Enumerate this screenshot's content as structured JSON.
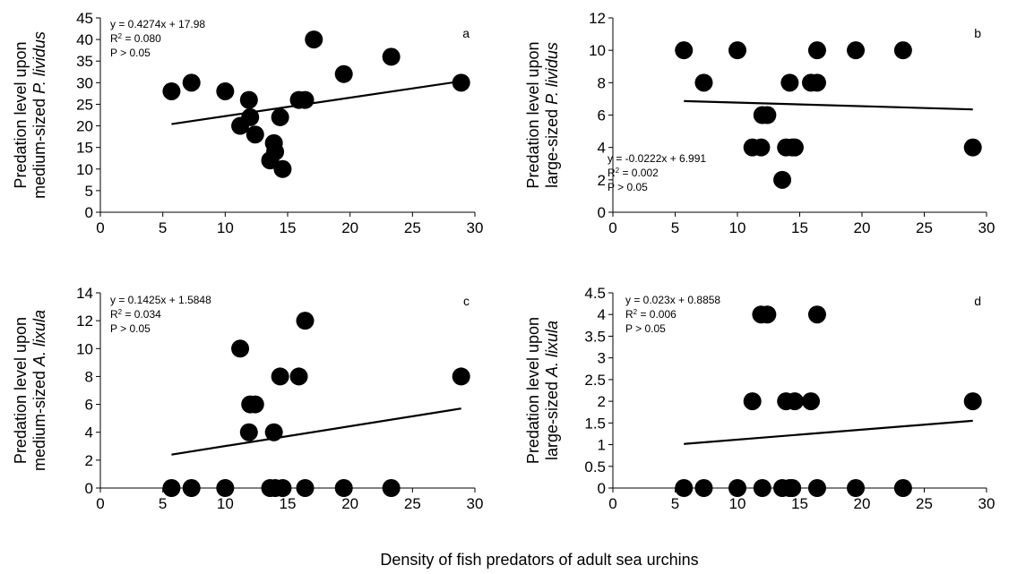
{
  "figure": {
    "xlabel": "Density of fish predators of adult sea urchins"
  },
  "chart_data": [
    {
      "type": "scatter",
      "panel_letter": "a",
      "ylabel_line1": "Predation level upon",
      "ylabel_line2_prefix": "medium-sized ",
      "ylabel_species": "P. lividus",
      "equation": "y = 0.4274x + 17.98",
      "r2_prefix": "R",
      "r2_sup": "2",
      "r2_value": " = 0.080",
      "p_text": "P > 0.05",
      "xlim": [
        0,
        30
      ],
      "xticks": [
        0,
        5,
        10,
        15,
        20,
        25,
        30
      ],
      "ylim": [
        0,
        45
      ],
      "yticks": [
        0,
        5,
        10,
        15,
        20,
        25,
        30,
        35,
        40,
        45
      ],
      "x": [
        5.7,
        7.3,
        10.0,
        11.2,
        11.9,
        12.0,
        12.4,
        13.6,
        13.9,
        14.0,
        14.4,
        14.6,
        15.9,
        16.4,
        17.1,
        19.5,
        23.3,
        28.9
      ],
      "y": [
        28,
        30,
        28,
        20,
        26,
        22,
        18,
        12,
        16,
        14,
        22,
        10,
        26,
        26,
        40,
        32,
        36,
        30
      ],
      "trendline": {
        "slope": 0.4274,
        "intercept": 17.98,
        "x_range": [
          5.7,
          28.9
        ]
      }
    },
    {
      "type": "scatter",
      "panel_letter": "b",
      "ylabel_line1": "Predation level upon",
      "ylabel_line2_prefix": "large-sized ",
      "ylabel_species": "P. lividus",
      "equation": "y = -0.0222x + 6.991",
      "r2_prefix": "R",
      "r2_sup": "2",
      "r2_value": " = 0.002",
      "p_text": "P > 0.05",
      "xlim": [
        0,
        30
      ],
      "xticks": [
        0,
        5,
        10,
        15,
        20,
        25,
        30
      ],
      "ylim": [
        0,
        12
      ],
      "yticks": [
        0,
        2,
        4,
        6,
        8,
        10,
        12
      ],
      "x": [
        5.7,
        7.3,
        10.0,
        11.2,
        11.9,
        12.0,
        12.4,
        13.6,
        13.9,
        14.2,
        14.6,
        14.4,
        15.9,
        16.4,
        16.4,
        19.5,
        23.3,
        28.9
      ],
      "y": [
        10,
        8,
        10,
        4,
        4,
        6,
        6,
        2,
        4,
        8,
        4,
        4,
        8,
        8,
        10,
        10,
        10,
        4
      ],
      "trendline": {
        "slope": -0.0222,
        "intercept": 6.991,
        "x_range": [
          5.7,
          28.9
        ]
      }
    },
    {
      "type": "scatter",
      "panel_letter": "c",
      "ylabel_line1": "Predation level upon",
      "ylabel_line2_prefix": "medium-sized ",
      "ylabel_species": "A. lixula",
      "equation": "y = 0.1425x + 1.5848",
      "r2_prefix": "R",
      "r2_sup": "2",
      "r2_value": " = 0.034",
      "p_text": "P > 0.05",
      "xlim": [
        0,
        30
      ],
      "xticks": [
        0,
        5,
        10,
        15,
        20,
        25,
        30
      ],
      "ylim": [
        0,
        14
      ],
      "yticks": [
        0,
        2,
        4,
        6,
        8,
        10,
        12,
        14
      ],
      "x": [
        5.7,
        7.3,
        10.0,
        11.2,
        11.9,
        12.0,
        12.4,
        13.6,
        13.9,
        14.0,
        14.4,
        14.6,
        15.9,
        16.4,
        16.4,
        19.5,
        23.3,
        28.9
      ],
      "y": [
        0,
        0,
        0,
        10,
        4,
        6,
        6,
        0,
        4,
        0,
        8,
        0,
        8,
        12,
        0,
        0,
        0,
        8
      ],
      "trendline": {
        "slope": 0.1425,
        "intercept": 1.5848,
        "x_range": [
          5.7,
          28.9
        ]
      }
    },
    {
      "type": "scatter",
      "panel_letter": "d",
      "ylabel_line1": "Predation level upon",
      "ylabel_line2_prefix": "large-sized ",
      "ylabel_species": "A. lixula",
      "equation": "y = 0.023x + 0.8858",
      "r2_prefix": "R",
      "r2_sup": "2",
      "r2_value": " = 0.006",
      "p_text": "P > 0.05",
      "xlim": [
        0,
        30
      ],
      "xticks": [
        0,
        5,
        10,
        15,
        20,
        25,
        30
      ],
      "ylim": [
        0,
        4.5
      ],
      "yticks": [
        0,
        0.5,
        1,
        1.5,
        2,
        2.5,
        3,
        3.5,
        4,
        4.5
      ],
      "x": [
        5.7,
        7.3,
        10.0,
        11.2,
        11.9,
        12.0,
        12.4,
        13.6,
        13.9,
        14.2,
        14.6,
        14.4,
        15.9,
        16.4,
        16.4,
        19.5,
        23.3,
        28.9
      ],
      "y": [
        0,
        0,
        0,
        2,
        4,
        0,
        4,
        0,
        2,
        0,
        2,
        0,
        2,
        4,
        0,
        0,
        0,
        2
      ],
      "trendline": {
        "slope": 0.023,
        "intercept": 0.8858,
        "x_range": [
          5.7,
          28.9
        ]
      }
    }
  ]
}
